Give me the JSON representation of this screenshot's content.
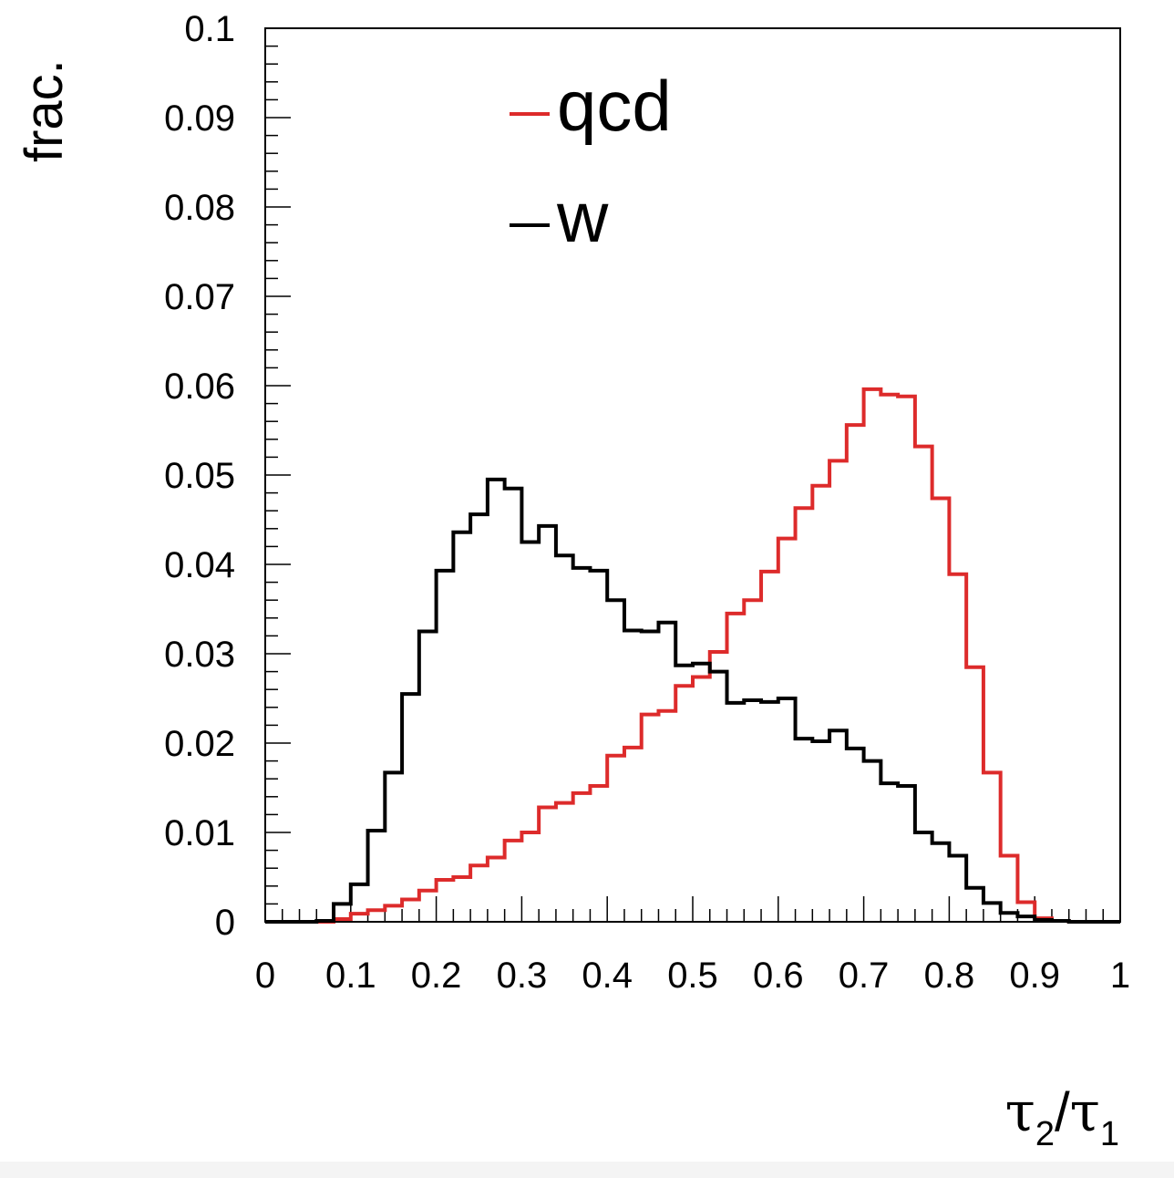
{
  "chart_data": {
    "type": "line",
    "step": true,
    "xlabel": "τ2/τ1",
    "xlabel_parts": {
      "base": "τ",
      "sub1": "2",
      "sep": "/",
      "sub2": "1"
    },
    "ylabel": "frac.",
    "xlim": [
      0,
      1
    ],
    "ylim": [
      0,
      0.1
    ],
    "x_ticks": [
      "0",
      "0.1",
      "0.2",
      "0.3",
      "0.4",
      "0.5",
      "0.6",
      "0.7",
      "0.8",
      "0.9",
      "1"
    ],
    "y_ticks": [
      "0",
      "0.01",
      "0.02",
      "0.03",
      "0.04",
      "0.05",
      "0.06",
      "0.07",
      "0.08",
      "0.09",
      "0.1"
    ],
    "grid": false,
    "legend_position": "top-center",
    "bin_width": 0.02,
    "series": [
      {
        "name": "qcd",
        "color": "#dd2b2b",
        "values": [
          0,
          0,
          0,
          0,
          0.0003,
          0.0009,
          0.0013,
          0.0018,
          0.0025,
          0.0035,
          0.0047,
          0.005,
          0.0063,
          0.0072,
          0.0091,
          0.01,
          0.0128,
          0.0133,
          0.0144,
          0.0152,
          0.0186,
          0.0195,
          0.0232,
          0.0236,
          0.0264,
          0.0274,
          0.0302,
          0.0345,
          0.036,
          0.0392,
          0.0429,
          0.0463,
          0.0488,
          0.0516,
          0.0556,
          0.0596,
          0.059,
          0.0588,
          0.0532,
          0.0474,
          0.0389,
          0.0285,
          0.0167,
          0.0074,
          0.0022,
          0.0004,
          0.0001,
          0,
          0,
          0
        ]
      },
      {
        "name": "w",
        "color": "#000000",
        "values": [
          0,
          0,
          0,
          0.0001,
          0.002,
          0.0042,
          0.0102,
          0.0167,
          0.0255,
          0.0325,
          0.0393,
          0.0436,
          0.0456,
          0.0495,
          0.0485,
          0.0425,
          0.0443,
          0.041,
          0.0396,
          0.0393,
          0.036,
          0.0326,
          0.0325,
          0.0335,
          0.0287,
          0.0289,
          0.028,
          0.0245,
          0.0248,
          0.0246,
          0.025,
          0.0205,
          0.0202,
          0.0214,
          0.0194,
          0.018,
          0.0155,
          0.0152,
          0.01,
          0.0088,
          0.0074,
          0.0038,
          0.0021,
          0.001,
          0.0006,
          0.0002,
          0.0001,
          0,
          0,
          0
        ]
      }
    ]
  }
}
